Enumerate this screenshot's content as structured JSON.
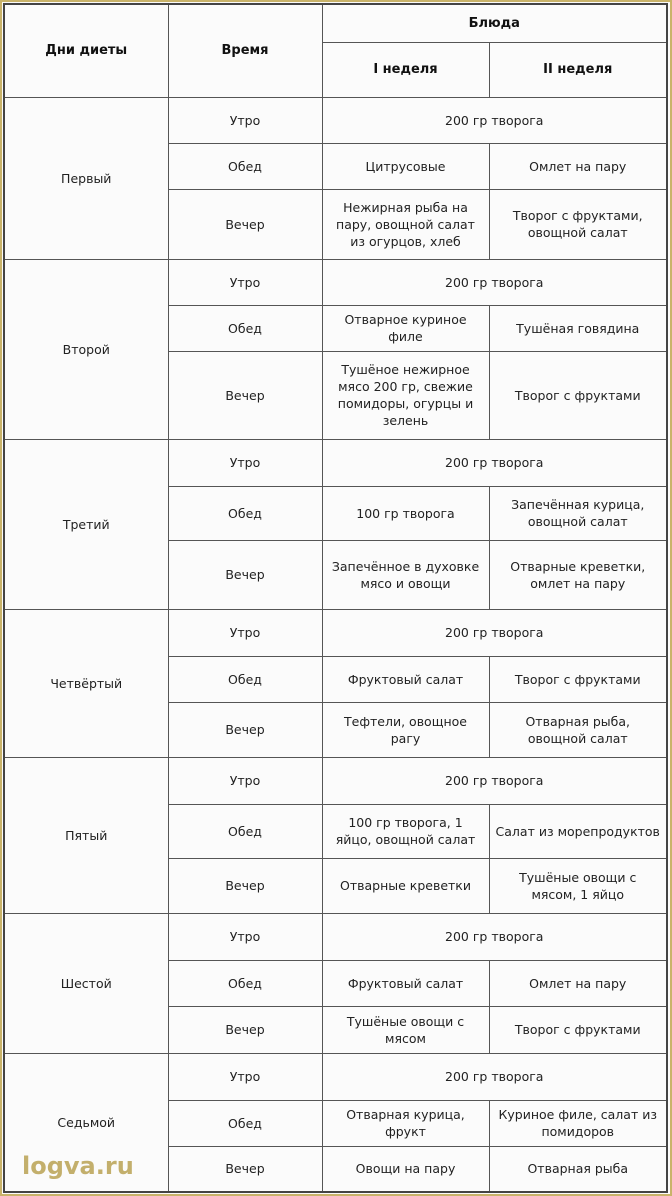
{
  "header": {
    "days": "Дни диеты",
    "time": "Время",
    "dishes": "Блюда",
    "week1": "I неделя",
    "week2": "II неделя"
  },
  "days": [
    {
      "name": "Первый",
      "meals": [
        {
          "time": "Утро",
          "both": "200 гр творога"
        },
        {
          "time": "Обед",
          "w1": "Цитрусовые",
          "w2": "Омлет на пару"
        },
        {
          "time": "Вечер",
          "w1": "Нежирная рыба на пару, овощной салат из огурцов, хлеб",
          "w2": "Творог с фруктами, овощной салат"
        }
      ]
    },
    {
      "name": "Второй",
      "meals": [
        {
          "time": "Утро",
          "both": "200 гр творога"
        },
        {
          "time": "Обед",
          "w1": "Отварное куриное филе",
          "w2": "Тушёная говядина"
        },
        {
          "time": "Вечер",
          "w1": "Тушёное нежирное мясо 200 гр, свежие помидоры, огурцы и зелень",
          "w2": "Творог с фруктами"
        }
      ]
    },
    {
      "name": "Третий",
      "meals": [
        {
          "time": "Утро",
          "both": "200 гр творога"
        },
        {
          "time": "Обед",
          "w1": "100 гр творога",
          "w2": "Запечённая курица, овощной салат"
        },
        {
          "time": "Вечер",
          "w1": "Запечённое в духовке мясо и овощи",
          "w2": "Отварные креветки, омлет на пару"
        }
      ]
    },
    {
      "name": "Четвёртый",
      "meals": [
        {
          "time": "Утро",
          "both": "200 гр творога"
        },
        {
          "time": "Обед",
          "w1": "Фруктовый салат",
          "w2": "Творог с фруктами"
        },
        {
          "time": "Вечер",
          "w1": "Тефтели, овощное рагу",
          "w2": "Отварная рыба, овощной салат"
        }
      ]
    },
    {
      "name": "Пятый",
      "meals": [
        {
          "time": "Утро",
          "both": "200 гр творога"
        },
        {
          "time": "Обед",
          "w1": "100 гр творога, 1 яйцо, овощной салат",
          "w2": "Салат из морепродуктов"
        },
        {
          "time": "Вечер",
          "w1": "Отварные креветки",
          "w2": "Тушёные овощи с мясом, 1 яйцо"
        }
      ]
    },
    {
      "name": "Шестой",
      "meals": [
        {
          "time": "Утро",
          "both": "200 гр творога"
        },
        {
          "time": "Обед",
          "w1": "Фруктовый салат",
          "w2": "Омлет на пару"
        },
        {
          "time": "Вечер",
          "w1": "Тушёные овощи с мясом",
          "w2": "Творог с фруктами"
        }
      ]
    },
    {
      "name": "Седьмой",
      "meals": [
        {
          "time": "Утро",
          "both": "200 гр творога"
        },
        {
          "time": "Обед",
          "w1": "Отварная курица, фрукт",
          "w2": "Куриное филе, салат из помидоров"
        },
        {
          "time": "Вечер",
          "w1": "Овощи на пару",
          "w2": "Отварная рыба"
        }
      ]
    }
  ],
  "watermark": "logva.ru"
}
